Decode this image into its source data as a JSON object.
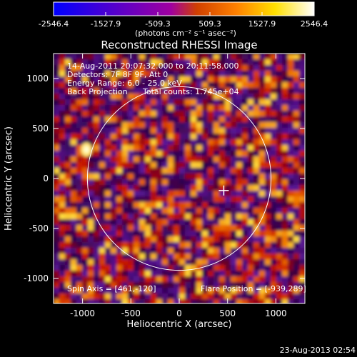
{
  "chart_data": {
    "type": "heatmap",
    "title": "Reconstructed RHESSI Image",
    "xlabel": "Heliocentric X (arcsec)",
    "ylabel": "Heliocentric Y (arcsec)",
    "xlim": [
      -1300,
      1300
    ],
    "ylim": [
      -1250,
      1250
    ],
    "x_ticks": [
      -1000,
      -500,
      0,
      500,
      1000
    ],
    "y_ticks": [
      -1000,
      -500,
      0,
      500,
      1000
    ],
    "colorbar": {
      "ticks": [
        "-2546.4",
        "-1527.9",
        "-509.3",
        "509.3",
        "1527.9",
        "2546.4"
      ],
      "range": [
        -2546.4,
        2546.4
      ],
      "unit_label": "(photons cm⁻² s⁻¹ asec⁻²)",
      "colors": [
        "#0000ff",
        "#5a00c8",
        "#a000a0",
        "#d04000",
        "#ff8000",
        "#ffe000",
        "#ffffff"
      ]
    },
    "annotations": {
      "time_range": "14-Aug-2011 20:07:32.000 to 20:11:58.000",
      "detectors": "Detectors: 7F 8F 9F, Att 0",
      "energy_range": "Energy Range: 6.0 - 25.0 keV",
      "method": "Back Projection",
      "total_counts": "Total counts: 1.745e+04",
      "spin_axis": "Spin Axis = [461,-120]",
      "flare_position": "Flare Position = [-939,289]"
    },
    "solar_limb": {
      "center": [
        0,
        0
      ],
      "radius": 950
    },
    "spin_axis_marker": [
      461,
      -120
    ],
    "bright_source": [
      -960,
      290
    ],
    "grid": false
  },
  "footer_timestamp": "23-Aug-2013 02:54"
}
